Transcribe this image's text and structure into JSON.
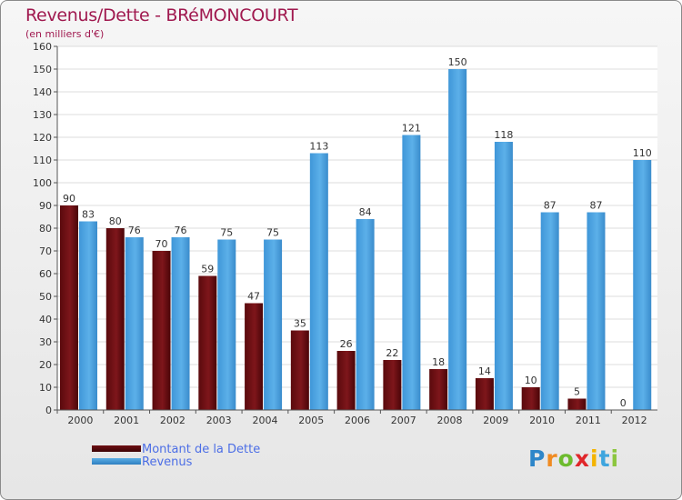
{
  "title": "Revenus/Dette - BRéMONCOURT",
  "subtitle": "(en milliers d'€)",
  "legend": {
    "debt": "Montant de la Dette",
    "revenue": "Revenus"
  },
  "logo": {
    "p": "P",
    "r": "r",
    "o": "o",
    "x": "x",
    "i1": "i",
    "t": "t",
    "i2": "i"
  },
  "colors": {
    "debt": "#6e0e12",
    "revenue": "#4da3e0",
    "title": "#a0194f",
    "legend_text": "#4c6ee6"
  },
  "chart_data": {
    "type": "bar",
    "title": "Revenus/Dette - BRéMONCOURT",
    "ylabel": "(en milliers d'€)",
    "xlabel": "",
    "categories": [
      "2000",
      "2001",
      "2002",
      "2003",
      "2004",
      "2005",
      "2006",
      "2007",
      "2008",
      "2009",
      "2010",
      "2011",
      "2012"
    ],
    "series": [
      {
        "name": "Montant de la Dette",
        "values": [
          90,
          80,
          70,
          59,
          47,
          35,
          26,
          22,
          18,
          14,
          10,
          5,
          0
        ]
      },
      {
        "name": "Revenus",
        "values": [
          83,
          76,
          76,
          75,
          75,
          113,
          84,
          121,
          150,
          118,
          87,
          87,
          110
        ]
      }
    ],
    "ylim": [
      0,
      160
    ],
    "yticks": [
      0,
      10,
      20,
      30,
      40,
      50,
      60,
      70,
      80,
      90,
      100,
      110,
      120,
      130,
      140,
      150,
      160
    ],
    "grid": true,
    "legend_position": "bottom-left"
  }
}
